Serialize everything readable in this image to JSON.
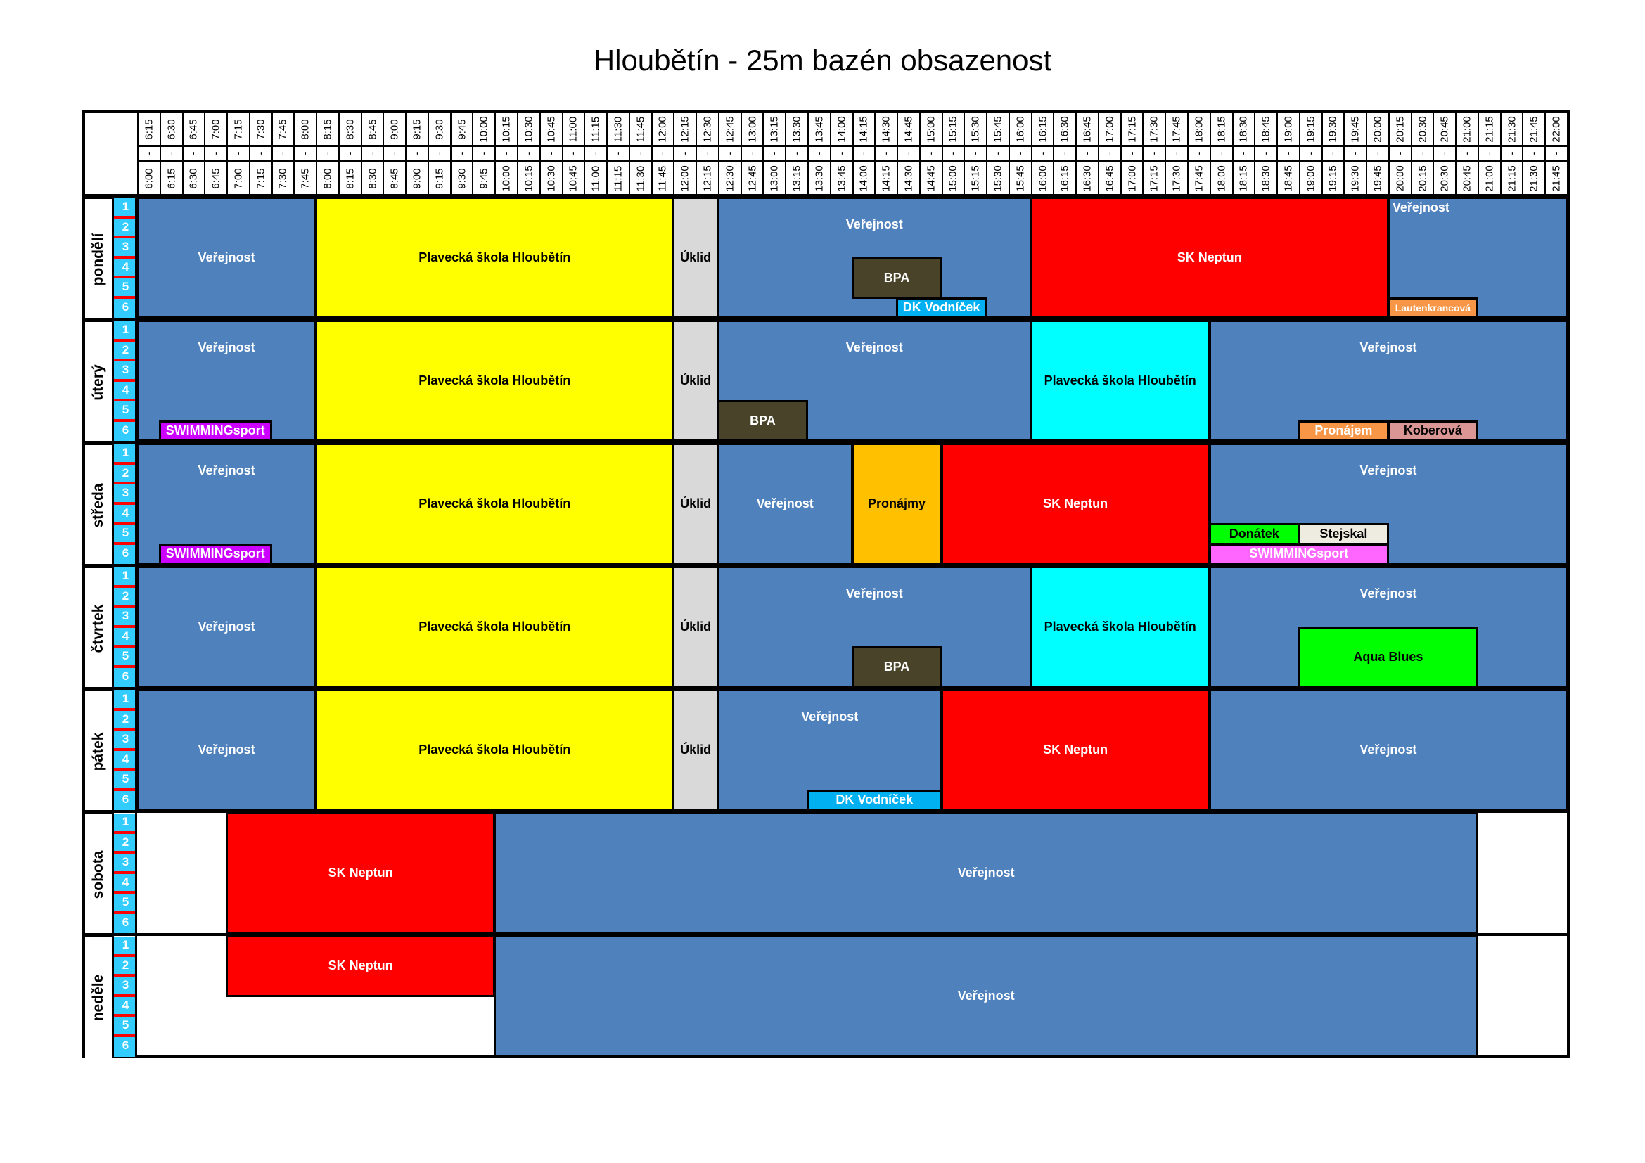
{
  "title": "Hloubětín - 25m bazén obsazenost",
  "time_slots": [
    "6:00",
    "6:15",
    "6:30",
    "6:45",
    "7:00",
    "7:15",
    "7:30",
    "7:45",
    "8:00",
    "8:15",
    "8:30",
    "8:45",
    "9:00",
    "9:15",
    "9:30",
    "9:45",
    "10:00",
    "10:15",
    "10:30",
    "10:45",
    "11:00",
    "11:15",
    "11:30",
    "11:45",
    "12:00",
    "12:15",
    "12:30",
    "12:45",
    "13:00",
    "13:15",
    "13:30",
    "13:45",
    "14:00",
    "14:15",
    "14:30",
    "14:45",
    "15:00",
    "15:15",
    "15:30",
    "15:45",
    "16:00",
    "16:15",
    "16:30",
    "16:45",
    "17:00",
    "17:15",
    "17:30",
    "17:45",
    "18:00",
    "18:15",
    "18:30",
    "18:45",
    "19:00",
    "19:15",
    "19:30",
    "19:45",
    "20:00",
    "20:15",
    "20:30",
    "20:45",
    "21:00",
    "21:15",
    "21:30",
    "21:45",
    "22:00"
  ],
  "separator": "-",
  "lanes": [
    "1",
    "2",
    "3",
    "4",
    "5",
    "6"
  ],
  "colors": {
    "verejnost": "#4F81BD",
    "plavecka": "#FFFF00",
    "uklid": "#D9D9D9",
    "neptun": "#FF0000",
    "plavecka2": "#00FFFF",
    "bpa": "#494429",
    "vodnicek": "#00B0F0",
    "pronajmy": "#FFC000",
    "orange": "#F79646",
    "koberova": "#DA9694",
    "donatek": "#00FF00",
    "stejskal": "#EEECE1",
    "swim": "#CC00FF",
    "swim2": "#FF66FF",
    "lane": "#33CCFF",
    "lane_divider": "#FF0000"
  },
  "days": [
    {
      "name": "pondělí",
      "blocks": [
        {
          "label": "Veřejnost",
          "from": "6:00",
          "to": "8:00",
          "lanes": [
            1,
            6
          ],
          "color": "verejnost",
          "text": "#fff"
        },
        {
          "label": "Plavecká škola Hloubětín",
          "from": "8:00",
          "to": "12:00",
          "lanes": [
            1,
            6
          ],
          "color": "plavecka",
          "text": "#000"
        },
        {
          "label": "Úklid",
          "from": "12:00",
          "to": "12:30",
          "lanes": [
            1,
            6
          ],
          "color": "uklid",
          "text": "#000"
        },
        {
          "label": "Veřejnost",
          "from": "12:30",
          "to": "16:00",
          "lanes": [
            1,
            6
          ],
          "color": "verejnost",
          "text": "#fff",
          "align": "upper"
        },
        {
          "label": "BPA",
          "from": "14:00",
          "to": "15:00",
          "lanes": [
            4,
            5
          ],
          "color": "bpa",
          "text": "#fff"
        },
        {
          "label": "DK Vodníček",
          "from": "14:30",
          "to": "15:30",
          "lanes": [
            6,
            6
          ],
          "color": "vodnicek",
          "text": "#fff"
        },
        {
          "label": "SK Neptun",
          "from": "16:00",
          "to": "20:00",
          "lanes": [
            1,
            6
          ],
          "color": "neptun",
          "text": "#fff"
        },
        {
          "label": "Veřejnost",
          "from": "20:00",
          "to": "22:00",
          "lanes": [
            1,
            6
          ],
          "color": "verejnost",
          "text": "#fff",
          "align": "top-left"
        },
        {
          "label": "Lautenkrancová",
          "from": "20:00",
          "to": "21:00",
          "lanes": [
            6,
            6
          ],
          "color": "orange",
          "text": "#fff",
          "size": "small"
        }
      ]
    },
    {
      "name": "úterý",
      "blocks": [
        {
          "label": "Veřejnost",
          "from": "6:00",
          "to": "8:00",
          "lanes": [
            1,
            6
          ],
          "color": "verejnost",
          "text": "#fff",
          "align": "upper"
        },
        {
          "label": "SWIMMINGsport",
          "from": "6:15",
          "to": "7:30",
          "lanes": [
            6,
            6
          ],
          "color": "swim",
          "text": "#fff"
        },
        {
          "label": "Plavecká škola Hloubětín",
          "from": "8:00",
          "to": "12:00",
          "lanes": [
            1,
            6
          ],
          "color": "plavecka",
          "text": "#000"
        },
        {
          "label": "Úklid",
          "from": "12:00",
          "to": "12:30",
          "lanes": [
            1,
            6
          ],
          "color": "uklid",
          "text": "#000"
        },
        {
          "label": "Veřejnost",
          "from": "12:30",
          "to": "16:00",
          "lanes": [
            1,
            6
          ],
          "color": "verejnost",
          "text": "#fff",
          "align": "upper"
        },
        {
          "label": "BPA",
          "from": "12:30",
          "to": "13:30",
          "lanes": [
            5,
            6
          ],
          "color": "bpa",
          "text": "#fff"
        },
        {
          "label": "Plavecká škola Hloubětín",
          "from": "16:00",
          "to": "18:00",
          "lanes": [
            1,
            6
          ],
          "color": "plavecka2",
          "text": "#000"
        },
        {
          "label": "Veřejnost",
          "from": "18:00",
          "to": "22:00",
          "lanes": [
            1,
            6
          ],
          "color": "verejnost",
          "text": "#fff",
          "align": "upper"
        },
        {
          "label": "Pronájem",
          "from": "19:00",
          "to": "20:00",
          "lanes": [
            6,
            6
          ],
          "color": "orange",
          "text": "#fff"
        },
        {
          "label": "Koberová",
          "from": "20:00",
          "to": "21:00",
          "lanes": [
            6,
            6
          ],
          "color": "koberova",
          "text": "#000"
        }
      ]
    },
    {
      "name": "středa",
      "blocks": [
        {
          "label": "Veřejnost",
          "from": "6:00",
          "to": "8:00",
          "lanes": [
            1,
            6
          ],
          "color": "verejnost",
          "text": "#fff",
          "align": "upper"
        },
        {
          "label": "SWIMMINGsport",
          "from": "6:15",
          "to": "7:30",
          "lanes": [
            6,
            6
          ],
          "color": "swim",
          "text": "#fff"
        },
        {
          "label": "Plavecká škola Hloubětín",
          "from": "8:00",
          "to": "12:00",
          "lanes": [
            1,
            6
          ],
          "color": "plavecka",
          "text": "#000"
        },
        {
          "label": "Úklid",
          "from": "12:00",
          "to": "12:30",
          "lanes": [
            1,
            6
          ],
          "color": "uklid",
          "text": "#000"
        },
        {
          "label": "Veřejnost",
          "from": "12:30",
          "to": "14:00",
          "lanes": [
            1,
            6
          ],
          "color": "verejnost",
          "text": "#fff"
        },
        {
          "label": "Pronájmy",
          "from": "14:00",
          "to": "15:00",
          "lanes": [
            1,
            6
          ],
          "color": "pronajmy",
          "text": "#000"
        },
        {
          "label": "SK Neptun",
          "from": "15:00",
          "to": "18:00",
          "lanes": [
            1,
            6
          ],
          "color": "neptun",
          "text": "#fff"
        },
        {
          "label": "Veřejnost",
          "from": "18:00",
          "to": "22:00",
          "lanes": [
            1,
            6
          ],
          "color": "verejnost",
          "text": "#fff",
          "align": "upper"
        },
        {
          "label": "Donátek",
          "from": "18:00",
          "to": "19:00",
          "lanes": [
            5,
            5
          ],
          "color": "donatek",
          "text": "#000"
        },
        {
          "label": "Stejskal",
          "from": "19:00",
          "to": "20:00",
          "lanes": [
            5,
            5
          ],
          "color": "stejskal",
          "text": "#000"
        },
        {
          "label": "SWIMMINGsport",
          "from": "18:00",
          "to": "20:00",
          "lanes": [
            6,
            6
          ],
          "color": "swim2",
          "text": "#fff"
        }
      ]
    },
    {
      "name": "čtvrtek",
      "blocks": [
        {
          "label": "Veřejnost",
          "from": "6:00",
          "to": "8:00",
          "lanes": [
            1,
            6
          ],
          "color": "verejnost",
          "text": "#fff"
        },
        {
          "label": "Plavecká škola Hloubětín",
          "from": "8:00",
          "to": "12:00",
          "lanes": [
            1,
            6
          ],
          "color": "plavecka",
          "text": "#000"
        },
        {
          "label": "Úklid",
          "from": "12:00",
          "to": "12:30",
          "lanes": [
            1,
            6
          ],
          "color": "uklid",
          "text": "#000"
        },
        {
          "label": "Veřejnost",
          "from": "12:30",
          "to": "16:00",
          "lanes": [
            1,
            6
          ],
          "color": "verejnost",
          "text": "#fff",
          "align": "upper"
        },
        {
          "label": "BPA",
          "from": "14:00",
          "to": "15:00",
          "lanes": [
            5,
            6
          ],
          "color": "bpa",
          "text": "#fff"
        },
        {
          "label": "Plavecká škola Hloubětín",
          "from": "16:00",
          "to": "18:00",
          "lanes": [
            1,
            6
          ],
          "color": "plavecka2",
          "text": "#000"
        },
        {
          "label": "Veřejnost",
          "from": "18:00",
          "to": "22:00",
          "lanes": [
            1,
            6
          ],
          "color": "verejnost",
          "text": "#fff",
          "align": "upper"
        },
        {
          "label": "Aqua Blues",
          "from": "19:00",
          "to": "21:00",
          "lanes": [
            4,
            6
          ],
          "color": "donatek",
          "text": "#000"
        }
      ]
    },
    {
      "name": "pátek",
      "blocks": [
        {
          "label": "Veřejnost",
          "from": "6:00",
          "to": "8:00",
          "lanes": [
            1,
            6
          ],
          "color": "verejnost",
          "text": "#fff"
        },
        {
          "label": "Plavecká škola Hloubětín",
          "from": "8:00",
          "to": "12:00",
          "lanes": [
            1,
            6
          ],
          "color": "plavecka",
          "text": "#000"
        },
        {
          "label": "Úklid",
          "from": "12:00",
          "to": "12:30",
          "lanes": [
            1,
            6
          ],
          "color": "uklid",
          "text": "#000"
        },
        {
          "label": "Veřejnost",
          "from": "12:30",
          "to": "15:00",
          "lanes": [
            1,
            6
          ],
          "color": "verejnost",
          "text": "#fff",
          "align": "upper"
        },
        {
          "label": "DK Vodníček",
          "from": "13:30",
          "to": "15:00",
          "lanes": [
            6,
            6
          ],
          "color": "vodnicek",
          "text": "#fff"
        },
        {
          "label": "SK Neptun",
          "from": "15:00",
          "to": "18:00",
          "lanes": [
            1,
            6
          ],
          "color": "neptun",
          "text": "#fff"
        },
        {
          "label": "Veřejnost",
          "from": "18:00",
          "to": "22:00",
          "lanes": [
            1,
            6
          ],
          "color": "verejnost",
          "text": "#fff"
        }
      ]
    },
    {
      "name": "sobota",
      "blocks": [
        {
          "label": "SK Neptun",
          "from": "7:00",
          "to": "10:00",
          "lanes": [
            1,
            6
          ],
          "color": "neptun",
          "text": "#fff"
        },
        {
          "label": "Veřejnost",
          "from": "10:00",
          "to": "21:00",
          "lanes": [
            1,
            6
          ],
          "color": "verejnost",
          "text": "#fff"
        }
      ]
    },
    {
      "name": "neděle",
      "blocks": [
        {
          "label": "SK Neptun",
          "from": "7:00",
          "to": "10:00",
          "lanes": [
            1,
            3
          ],
          "color": "neptun",
          "text": "#fff"
        },
        {
          "label": "Veřejnost",
          "from": "10:00",
          "to": "21:00",
          "lanes": [
            1,
            6
          ],
          "color": "verejnost",
          "text": "#fff"
        }
      ]
    }
  ]
}
